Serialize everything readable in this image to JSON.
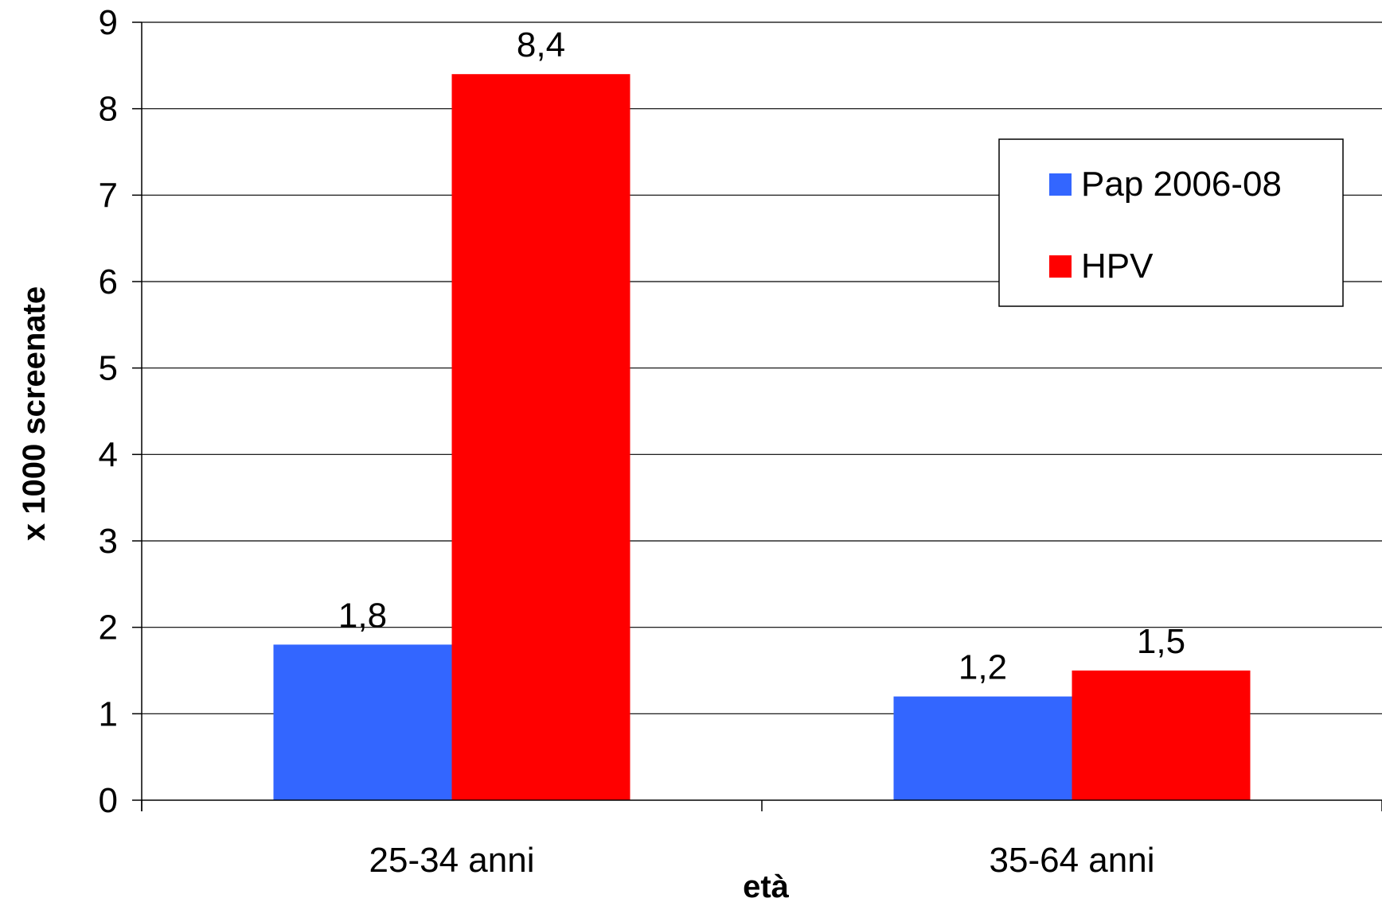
{
  "chart_data": {
    "type": "bar",
    "categories": [
      "25-34 anni",
      "35-64 anni"
    ],
    "series": [
      {
        "name": "Pap 2006-08",
        "values": [
          1.8,
          1.2
        ],
        "labels": [
          "1,8",
          "1,2"
        ],
        "color": "#3366FF"
      },
      {
        "name": "HPV",
        "values": [
          8.4,
          1.5
        ],
        "labels": [
          "8,4",
          "1,5"
        ],
        "color": "#FF0000"
      }
    ],
    "xlabel": "età",
    "ylabel": "x 1000 screenate",
    "ylim": [
      0,
      9
    ],
    "yticks": [
      0,
      1,
      2,
      3,
      4,
      5,
      6,
      7,
      8,
      9
    ],
    "grid": true,
    "legend": "top-right"
  }
}
